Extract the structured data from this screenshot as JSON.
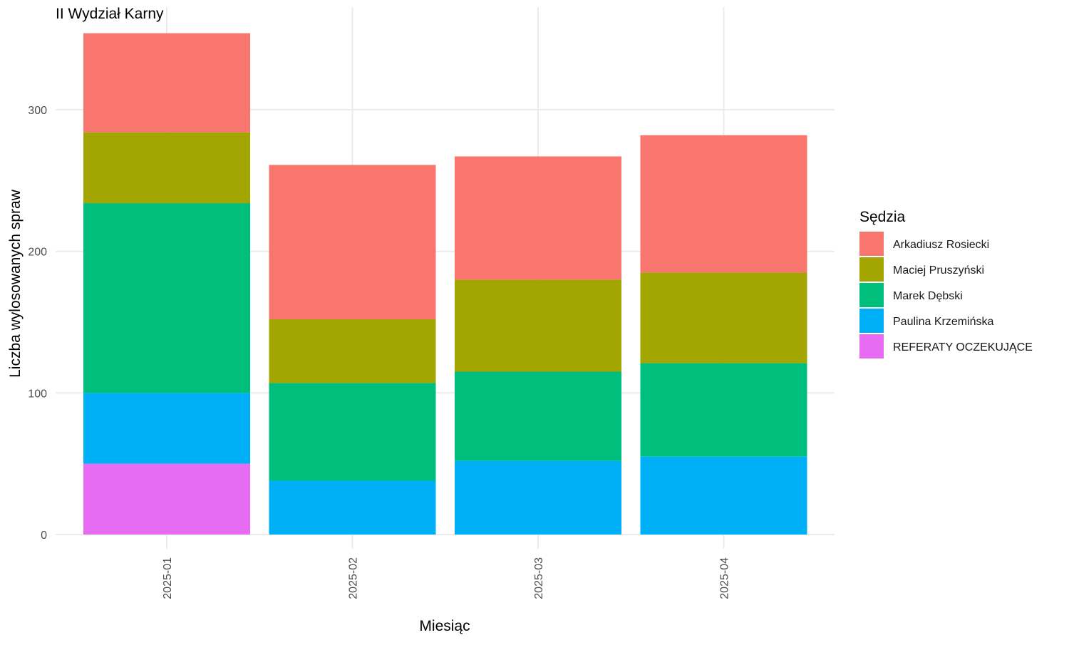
{
  "chart_data": {
    "type": "bar",
    "stacked": true,
    "title": "II Wydział Karny",
    "xlabel": "Miesiąc",
    "ylabel": "Liczba wylosowanych spraw",
    "categories": [
      "2025-01",
      "2025-02",
      "2025-03",
      "2025-04"
    ],
    "ylim": [
      0,
      360
    ],
    "yticks": [
      0,
      100,
      200,
      300
    ],
    "grid": true,
    "legend": {
      "title": "Sędzia",
      "position": "right"
    },
    "series": [
      {
        "name": "REFERATY OCZEKUJĄCE",
        "color": "#E76BF3",
        "values": [
          50,
          0,
          0,
          0
        ]
      },
      {
        "name": "Paulina Krzemińska",
        "color": "#00B0F6",
        "values": [
          50,
          38,
          52,
          55
        ]
      },
      {
        "name": "Marek Dębski",
        "color": "#00BF7D",
        "values": [
          134,
          69,
          63,
          66
        ]
      },
      {
        "name": "Maciej Pruszyński",
        "color": "#A3A500",
        "values": [
          50,
          45,
          65,
          64
        ]
      },
      {
        "name": "Arkadiusz Rosiecki",
        "color": "#F8766D",
        "values": [
          70,
          109,
          87,
          97
        ]
      }
    ],
    "legend_order": [
      "Arkadiusz Rosiecki",
      "Maciej Pruszyński",
      "Marek Dębski",
      "Paulina Krzemińska",
      "REFERATY OCZEKUJĄCE"
    ]
  }
}
